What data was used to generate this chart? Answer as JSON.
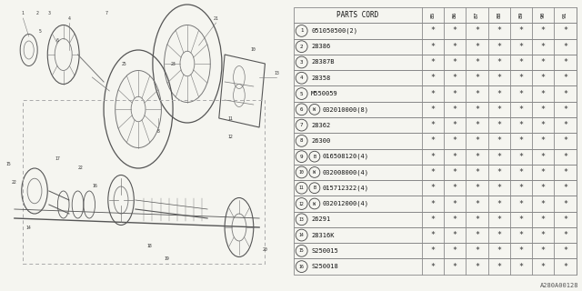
{
  "title": "1989 Subaru XT Front Axle Diagram 5",
  "diagram_id": "A280A00128",
  "bg_color": "#f5f5f0",
  "border_color": "#999999",
  "text_color": "#222222",
  "header": [
    "PARTS CORD",
    "85",
    "86",
    "87",
    "88",
    "89",
    "90",
    "91"
  ],
  "rows": [
    {
      "num": "1",
      "prefix": "",
      "code": "051050500(2)"
    },
    {
      "num": "2",
      "prefix": "",
      "code": "28386"
    },
    {
      "num": "3",
      "prefix": "",
      "code": "28387B"
    },
    {
      "num": "4",
      "prefix": "",
      "code": "28358"
    },
    {
      "num": "5",
      "prefix": "",
      "code": "M550059"
    },
    {
      "num": "6",
      "prefix": "W",
      "code": "032010000(8)"
    },
    {
      "num": "7",
      "prefix": "",
      "code": "28362"
    },
    {
      "num": "8",
      "prefix": "",
      "code": "26300"
    },
    {
      "num": "9",
      "prefix": "B",
      "code": "016508120(4)"
    },
    {
      "num": "10",
      "prefix": "W",
      "code": "032008000(4)"
    },
    {
      "num": "11",
      "prefix": "B",
      "code": "015712322(4)"
    },
    {
      "num": "12",
      "prefix": "W",
      "code": "032012000(4)"
    },
    {
      "num": "13",
      "prefix": "",
      "code": "26291"
    },
    {
      "num": "14",
      "prefix": "",
      "code": "28316K"
    },
    {
      "num": "15",
      "prefix": "",
      "code": "S250015"
    },
    {
      "num": "16",
      "prefix": "",
      "code": "S250018"
    }
  ],
  "star_char": "*",
  "line_color": "#888888",
  "dark_line_color": "#555555"
}
